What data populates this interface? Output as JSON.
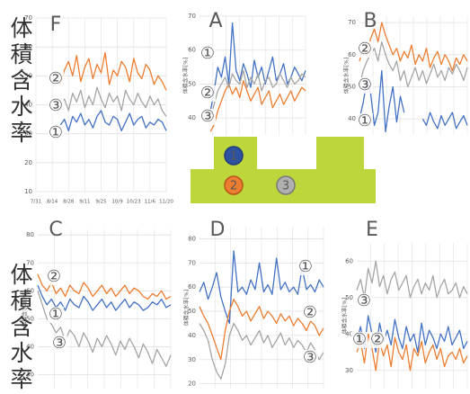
{
  "side_labels": [
    "体積含水率",
    "体積含水率"
  ],
  "diagram": {
    "nodes": [
      {
        "label": "1"
      },
      {
        "label": "2"
      },
      {
        "label": "3"
      }
    ]
  },
  "chart_data": [
    {
      "type": "line",
      "title": "F",
      "grid": true,
      "categories": [
        "7/31",
        null,
        null,
        null,
        "8/14",
        null,
        null,
        null,
        "8/28",
        null,
        null,
        null,
        "9/11",
        null,
        null,
        null,
        "9/25",
        null,
        null,
        null,
        "10/9",
        null,
        null,
        null,
        "10/23",
        null,
        null,
        null,
        "11/6",
        null,
        null,
        null,
        "11/20"
      ],
      "ylim": [
        10,
        70
      ],
      "yticks": [
        10,
        20,
        30,
        40,
        50,
        60,
        70
      ],
      "series": [
        {
          "name": "①",
          "color": "#4472c4",
          "values": [
            null,
            null,
            null,
            null,
            null,
            null,
            33,
            35,
            31,
            36,
            34,
            37,
            33,
            35,
            32,
            36,
            38,
            34,
            33,
            36,
            35,
            31,
            34,
            37,
            33,
            35,
            36,
            32,
            34,
            33,
            35,
            34,
            31
          ]
        },
        {
          "name": "②",
          "color": "#ed7d31",
          "values": [
            null,
            null,
            null,
            null,
            null,
            null,
            47,
            52,
            55,
            50,
            57,
            48,
            53,
            56,
            49,
            54,
            51,
            58,
            47,
            52,
            50,
            55,
            53,
            48,
            56,
            51,
            49,
            54,
            52,
            47,
            50,
            48,
            45
          ]
        },
        {
          "name": "③",
          "color": "#a5a5a5",
          "values": [
            null,
            null,
            null,
            null,
            null,
            null,
            40,
            42,
            38,
            44,
            41,
            45,
            39,
            43,
            40,
            46,
            42,
            39,
            44,
            41,
            43,
            38,
            45,
            42,
            40,
            44,
            41,
            39,
            43,
            40,
            42,
            38,
            36
          ]
        }
      ]
    },
    {
      "type": "line",
      "title": "A",
      "y_label": "体積含水率[%]",
      "grid": true,
      "ylim": [
        35,
        70
      ],
      "yticks": [
        40,
        50,
        60,
        70
      ],
      "series": [
        {
          "name": "①",
          "color": "#4472c4",
          "values": [
            null,
            null,
            null,
            42,
            48,
            55,
            52,
            58,
            50,
            68,
            54,
            51,
            56,
            53,
            49,
            57,
            52,
            55,
            50,
            54,
            58,
            51,
            53,
            56,
            50,
            52,
            55,
            53,
            51,
            54
          ]
        },
        {
          "name": "②",
          "color": "#ed7d31",
          "values": [
            null,
            null,
            null,
            36,
            38,
            42,
            45,
            48,
            50,
            47,
            49,
            46,
            51,
            48,
            45,
            47,
            49,
            44,
            46,
            48,
            43,
            45,
            47,
            44,
            46,
            48,
            45,
            47,
            49,
            48
          ]
        },
        {
          "name": "③",
          "color": "#a5a5a5",
          "values": [
            null,
            null,
            null,
            40,
            44,
            48,
            50,
            52,
            49,
            53,
            51,
            50,
            54,
            49,
            52,
            50,
            53,
            48,
            51,
            52,
            49,
            50,
            53,
            51,
            49,
            52,
            50,
            51,
            53,
            52
          ]
        }
      ]
    },
    {
      "type": "line",
      "title": "B",
      "y_label": "体積含水率[%]",
      "grid": true,
      "ylim": [
        35,
        72
      ],
      "yticks": [
        40,
        50,
        60,
        70
      ],
      "series": [
        {
          "name": "①",
          "color": "#4472c4",
          "values": [
            40,
            45,
            52,
            48,
            38,
            42,
            55,
            36,
            44,
            50,
            39,
            47,
            42,
            null,
            null,
            null,
            null,
            40,
            38,
            42,
            39,
            37,
            41,
            38,
            40,
            42,
            37,
            39,
            41,
            38
          ]
        },
        {
          "name": "②",
          "color": "#ed7d31",
          "values": [
            58,
            62,
            60,
            65,
            68,
            64,
            70,
            66,
            63,
            60,
            62,
            58,
            61,
            59,
            63,
            57,
            60,
            58,
            62,
            56,
            59,
            61,
            57,
            60,
            58,
            55,
            59,
            57,
            60,
            58
          ]
        },
        {
          "name": "③",
          "color": "#a5a5a5",
          "values": [
            50,
            55,
            58,
            60,
            62,
            58,
            64,
            60,
            57,
            55,
            58,
            52,
            55,
            50,
            53,
            56,
            52,
            55,
            51,
            54,
            57,
            53,
            55,
            52,
            56,
            54,
            57,
            55,
            52,
            56
          ]
        }
      ]
    },
    {
      "type": "line",
      "title": "C",
      "y_label": "体積含水率[%]",
      "grid": true,
      "ylim": [
        25,
        82
      ],
      "yticks": [
        30,
        40,
        50,
        60,
        70,
        80
      ],
      "series": [
        {
          "name": "①",
          "color": "#4472c4",
          "values": [
            62,
            58,
            55,
            57,
            54,
            56,
            53,
            57,
            55,
            54,
            58,
            56,
            53,
            55,
            57,
            54,
            56,
            53,
            55,
            57,
            54,
            56,
            55,
            53,
            54,
            56,
            55,
            57,
            54,
            55
          ]
        },
        {
          "name": "②",
          "color": "#ed7d31",
          "values": [
            66,
            62,
            60,
            63,
            59,
            61,
            58,
            62,
            60,
            59,
            63,
            61,
            58,
            60,
            62,
            59,
            61,
            58,
            60,
            62,
            59,
            61,
            60,
            58,
            57,
            59,
            58,
            60,
            57,
            58
          ]
        },
        {
          "name": "③",
          "color": "#a5a5a5",
          "values": [
            60,
            55,
            50,
            48,
            45,
            47,
            42,
            46,
            44,
            40,
            45,
            42,
            38,
            43,
            40,
            44,
            41,
            37,
            42,
            39,
            43,
            40,
            36,
            41,
            38,
            34,
            39,
            36,
            33,
            37
          ]
        }
      ]
    },
    {
      "type": "line",
      "title": "D",
      "y_label": "体積含水率[%]",
      "grid": true,
      "ylim": [
        18,
        85
      ],
      "yticks": [
        20,
        30,
        40,
        50,
        60,
        70,
        80
      ],
      "series": [
        {
          "name": "①",
          "color": "#4472c4",
          "values": [
            58,
            62,
            55,
            60,
            66,
            56,
            50,
            45,
            75,
            58,
            60,
            57,
            63,
            59,
            70,
            58,
            61,
            57,
            72,
            59,
            62,
            58,
            60,
            57,
            68,
            59,
            61,
            58,
            63,
            60
          ]
        },
        {
          "name": "②",
          "color": "#ed7d31",
          "values": [
            52,
            48,
            45,
            40,
            35,
            30,
            42,
            50,
            55,
            52,
            48,
            50,
            46,
            49,
            52,
            47,
            50,
            48,
            45,
            49,
            46,
            48,
            44,
            47,
            45,
            42,
            46,
            44,
            40,
            43
          ]
        },
        {
          "name": "③",
          "color": "#a5a5a5",
          "values": [
            45,
            42,
            38,
            30,
            25,
            22,
            28,
            40,
            45,
            42,
            38,
            40,
            36,
            39,
            42,
            37,
            40,
            35,
            38,
            41,
            36,
            39,
            35,
            38,
            36,
            33,
            37,
            34,
            30,
            33
          ]
        }
      ]
    },
    {
      "type": "line",
      "title": "E",
      "y_label": "体積含水率[%]",
      "grid": true,
      "ylim": [
        25,
        65
      ],
      "yticks": [
        30,
        40,
        50,
        60
      ],
      "series": [
        {
          "name": "①",
          "color": "#4472c4",
          "values": [
            38,
            42,
            36,
            45,
            40,
            35,
            43,
            38,
            41,
            37,
            44,
            39,
            36,
            42,
            38,
            40,
            35,
            43,
            37,
            41,
            39,
            36,
            40,
            38,
            42,
            37,
            39,
            41,
            36,
            38
          ]
        },
        {
          "name": "②",
          "color": "#ed7d31",
          "values": [
            35,
            38,
            32,
            40,
            36,
            30,
            38,
            34,
            37,
            31,
            39,
            35,
            33,
            37,
            30,
            36,
            34,
            38,
            32,
            35,
            37,
            33,
            36,
            31,
            34,
            35,
            33,
            36,
            32,
            34
          ]
        },
        {
          "name": "③",
          "color": "#a5a5a5",
          "values": [
            52,
            55,
            50,
            58,
            54,
            60,
            53,
            56,
            51,
            55,
            57,
            52,
            54,
            56,
            50,
            53,
            55,
            51,
            54,
            52,
            56,
            50,
            53,
            55,
            51,
            52,
            54,
            50,
            53,
            51
          ]
        }
      ]
    }
  ]
}
